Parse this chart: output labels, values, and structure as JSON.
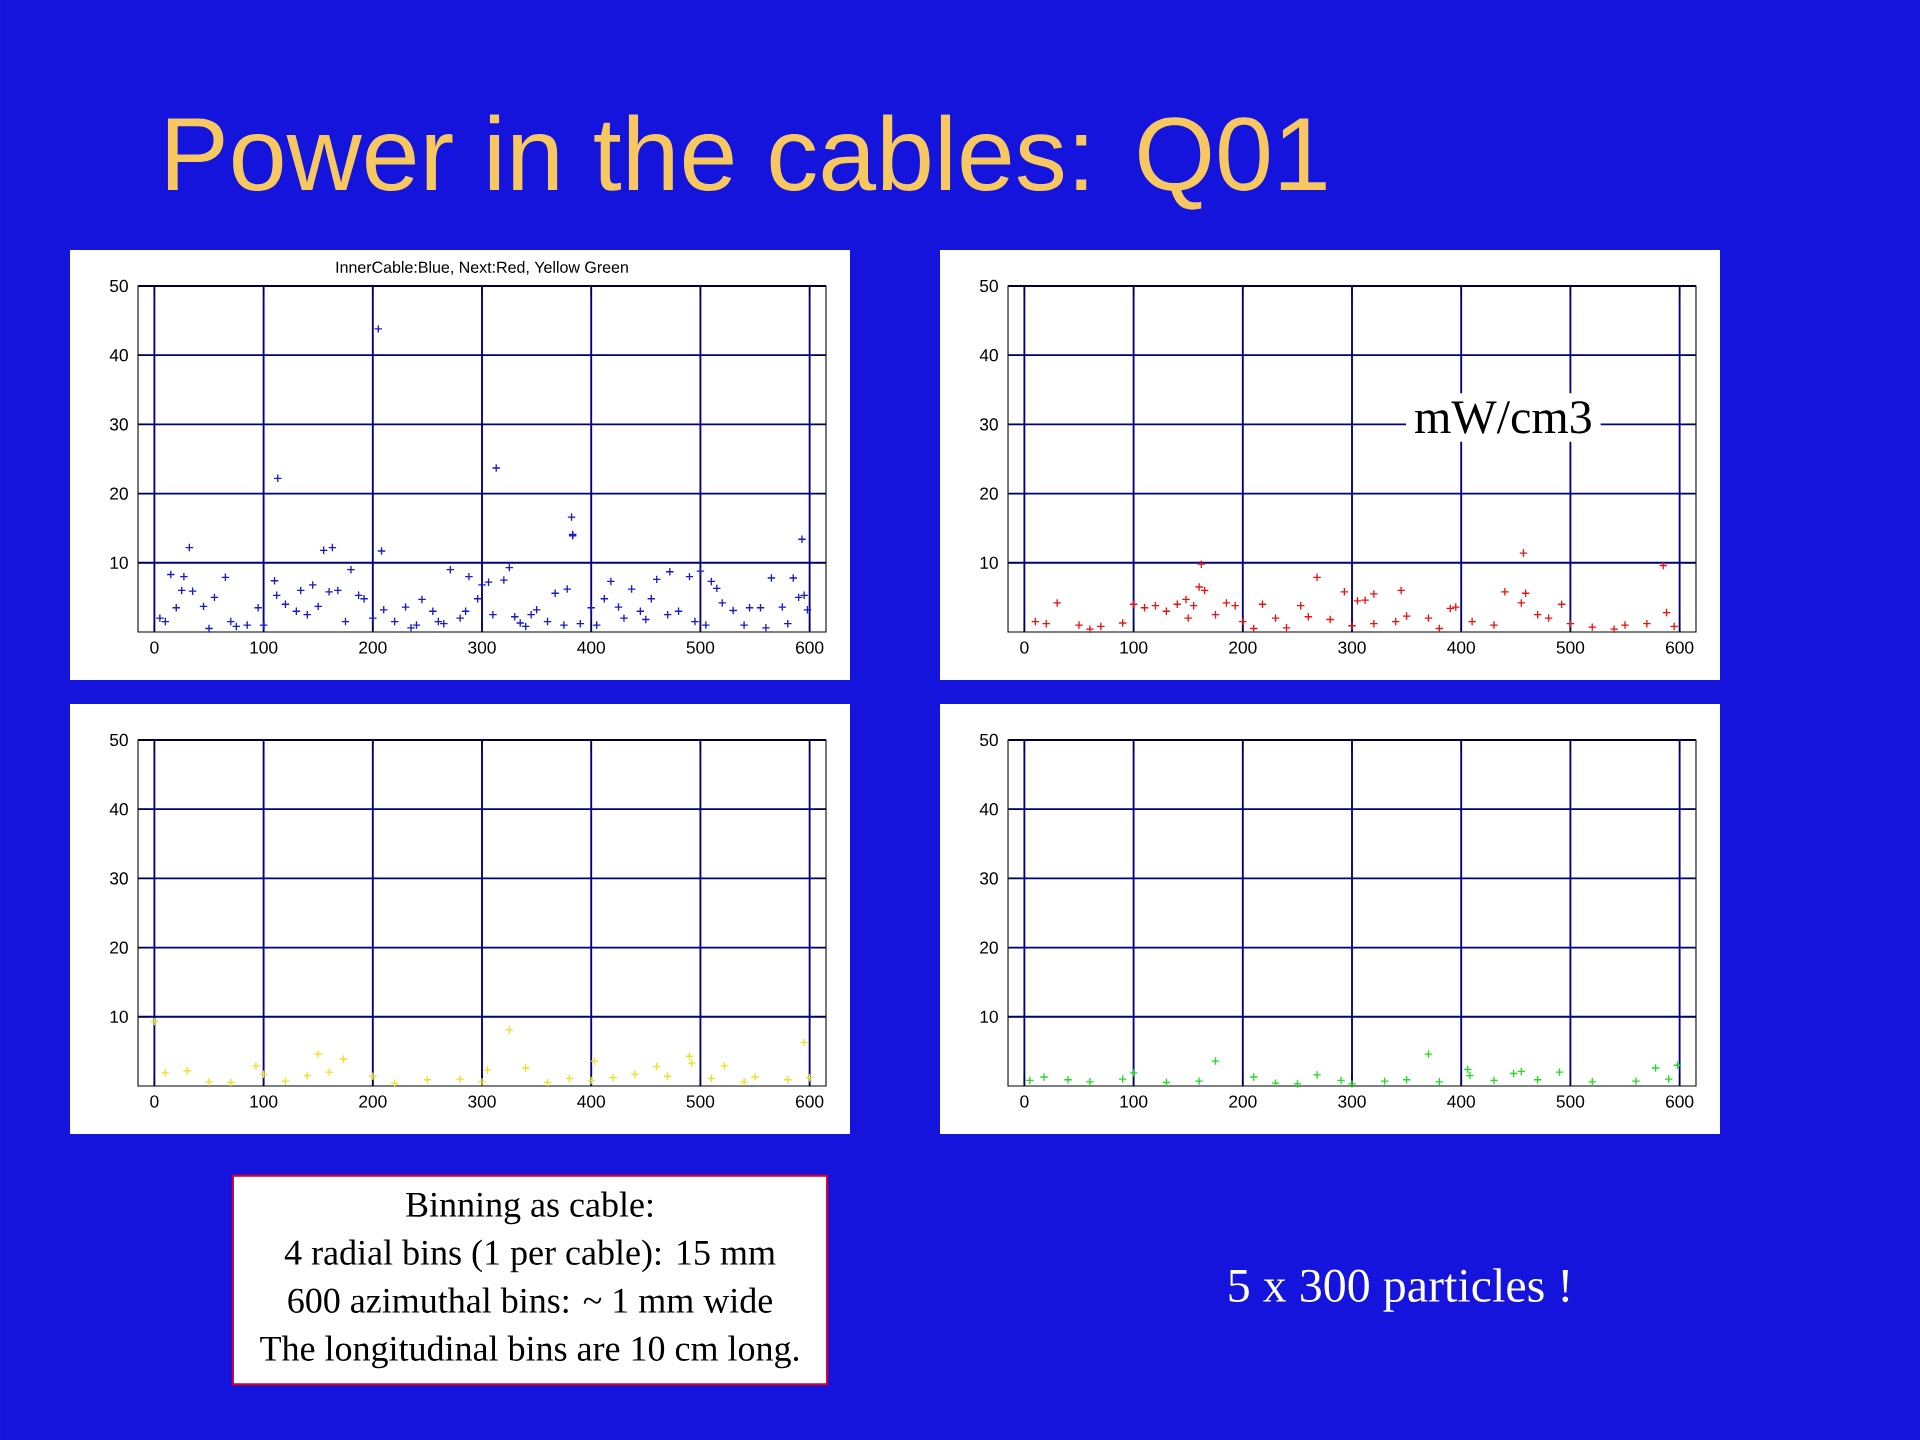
{
  "chart_data": [
    {
      "type": "scatter",
      "title": "Power in the cables: Q01",
      "subtitle": "InnerCable:Blue, Next:Red, Yellow Green",
      "color": "#1a1acc",
      "marker": "cross",
      "grid": true,
      "xlim": [
        -15,
        615
      ],
      "ylim": [
        0,
        50
      ],
      "xticks": [
        0,
        100,
        200,
        300,
        400,
        500,
        600
      ],
      "yticks": [
        10,
        20,
        30,
        40,
        50
      ],
      "x": [
        205,
        113,
        313,
        382,
        383,
        383,
        32,
        155,
        163,
        208,
        593,
        15,
        27,
        65,
        180,
        271,
        325,
        472,
        500,
        565,
        585,
        490,
        110,
        134,
        288,
        320,
        418,
        460,
        510,
        515,
        437,
        378,
        306,
        25,
        35,
        55,
        145,
        112,
        160,
        168,
        187,
        192,
        296,
        300,
        367,
        455,
        595,
        590,
        245,
        255,
        230,
        345,
        350,
        400,
        412,
        425,
        445,
        480,
        520,
        530,
        545,
        555,
        575,
        598,
        5,
        10,
        20,
        45,
        70,
        85,
        95,
        100,
        120,
        130,
        140,
        150,
        175,
        200,
        210,
        220,
        240,
        260,
        280,
        285,
        310,
        330,
        340,
        360,
        375,
        390,
        405,
        430,
        470,
        495,
        505,
        540,
        560,
        580,
        50,
        75,
        235,
        265,
        335,
        450
      ],
      "values": [
        43.8,
        22.2,
        23.7,
        16.6,
        14.1,
        13.9,
        12.2,
        11.8,
        12.2,
        11.7,
        13.4,
        8.3,
        8.0,
        7.9,
        9.0,
        9.0,
        9.3,
        8.7,
        8.8,
        7.8,
        7.8,
        8.0,
        7.4,
        6.0,
        8.0,
        7.5,
        7.3,
        7.6,
        7.3,
        6.3,
        6.2,
        6.2,
        7.2,
        6.0,
        5.9,
        5.0,
        6.8,
        5.3,
        5.8,
        6.0,
        5.3,
        4.8,
        4.8,
        6.8,
        5.6,
        4.8,
        5.3,
        5.0,
        4.7,
        3.0,
        3.6,
        2.5,
        3.2,
        3.5,
        4.8,
        3.6,
        3.0,
        3.0,
        4.2,
        3.1,
        3.5,
        3.5,
        3.6,
        3.2,
        2.0,
        1.5,
        3.5,
        3.7,
        1.5,
        1.0,
        3.5,
        1.0,
        4.0,
        3.0,
        2.5,
        3.7,
        1.5,
        2.0,
        3.2,
        1.5,
        1.0,
        1.5,
        2.0,
        3.0,
        2.5,
        2.2,
        0.8,
        1.5,
        1.0,
        1.2,
        1.0,
        2.0,
        2.5,
        1.5,
        1.0,
        1.0,
        0.6,
        1.2,
        0.5,
        0.8,
        0.6,
        1.2,
        1.3,
        1.8
      ],
      "annotations": [
        "Binning as cable:",
        "4 radial bins (1 per cable): 15 mm",
        "600 azimuthal bins: ~ 1 mm wide",
        "The longitudinal bins are 10 cm long.",
        "5 x 300 particles !"
      ]
    },
    {
      "type": "scatter",
      "color": "#ee1111",
      "marker": "cross",
      "grid": true,
      "xlim": [
        -15,
        615
      ],
      "ylim": [
        0,
        50
      ],
      "xticks": [
        0,
        100,
        200,
        300,
        400,
        500,
        600
      ],
      "yticks": [
        10,
        20,
        30,
        40,
        50
      ],
      "x": [
        162,
        457,
        585,
        268,
        345,
        293,
        320,
        440,
        459,
        160,
        165,
        30,
        100,
        110,
        120,
        148,
        140,
        155,
        185,
        193,
        218,
        253,
        305,
        312,
        390,
        395,
        455,
        492,
        588,
        130,
        175,
        200,
        230,
        260,
        280,
        350,
        370,
        410,
        470,
        480,
        10,
        20,
        50,
        70,
        90,
        150,
        240,
        320,
        340,
        430,
        500,
        520,
        550,
        570,
        595,
        60,
        210,
        300,
        380,
        540
      ],
      "values": [
        9.8,
        11.4,
        9.6,
        7.9,
        6.0,
        5.8,
        5.5,
        5.8,
        5.6,
        6.5,
        6.0,
        4.2,
        4.0,
        3.5,
        3.8,
        4.7,
        4.0,
        3.8,
        4.2,
        3.8,
        4.0,
        3.8,
        4.5,
        4.6,
        3.4,
        3.6,
        4.2,
        4.0,
        2.8,
        3.0,
        2.5,
        1.5,
        2.0,
        2.2,
        1.8,
        2.3,
        2.0,
        1.5,
        2.5,
        2.0,
        1.5,
        1.2,
        1.0,
        0.8,
        1.3,
        2.0,
        0.6,
        1.2,
        1.5,
        1.0,
        1.2,
        0.7,
        1.0,
        1.2,
        0.8,
        0.4,
        0.5,
        0.9,
        0.5,
        0.4
      ],
      "annotations": [
        "mW/cm3"
      ]
    },
    {
      "type": "scatter",
      "color": "#f0e020",
      "marker": "cross",
      "grid": true,
      "xlim": [
        -15,
        615
      ],
      "ylim": [
        0,
        50
      ],
      "xticks": [
        0,
        100,
        200,
        300,
        400,
        500,
        600
      ],
      "yticks": [
        10,
        20,
        30,
        40,
        50
      ],
      "x": [
        0,
        325,
        595,
        490,
        492,
        150,
        173,
        93,
        403,
        305,
        340,
        522,
        460,
        30,
        10,
        100,
        160,
        140,
        200,
        250,
        280,
        380,
        420,
        440,
        470,
        510,
        550,
        580,
        50,
        70,
        120,
        220,
        300,
        360,
        400,
        540,
        600
      ],
      "values": [
        9.3,
        8.1,
        6.3,
        4.3,
        3.3,
        4.6,
        3.9,
        2.9,
        3.6,
        2.3,
        2.6,
        2.9,
        2.8,
        2.2,
        1.9,
        1.7,
        2.0,
        1.5,
        1.4,
        0.9,
        1.0,
        1.1,
        1.2,
        1.7,
        1.4,
        1.1,
        1.3,
        0.9,
        0.6,
        0.5,
        0.7,
        0.4,
        0.6,
        0.5,
        0.8,
        0.6,
        1.2
      ]
    },
    {
      "type": "scatter",
      "color": "#22dd22",
      "marker": "cross",
      "grid": true,
      "xlim": [
        -15,
        615
      ],
      "ylim": [
        0,
        50
      ],
      "xticks": [
        0,
        100,
        200,
        300,
        400,
        500,
        600
      ],
      "yticks": [
        10,
        20,
        30,
        40,
        50
      ],
      "x": [
        370,
        175,
        598,
        578,
        406,
        455,
        448,
        490,
        100,
        268,
        210,
        408,
        18,
        90,
        40,
        60,
        130,
        160,
        230,
        290,
        330,
        350,
        380,
        430,
        470,
        520,
        560,
        590,
        5,
        300,
        250
      ],
      "values": [
        4.6,
        3.6,
        3.0,
        2.6,
        2.4,
        2.1,
        1.8,
        2.0,
        1.9,
        1.6,
        1.3,
        1.5,
        1.3,
        1.0,
        0.9,
        0.6,
        0.5,
        0.7,
        0.4,
        0.8,
        0.7,
        0.9,
        0.6,
        0.8,
        0.9,
        0.6,
        0.7,
        1.0,
        0.8,
        0.3,
        0.3
      ]
    }
  ]
}
